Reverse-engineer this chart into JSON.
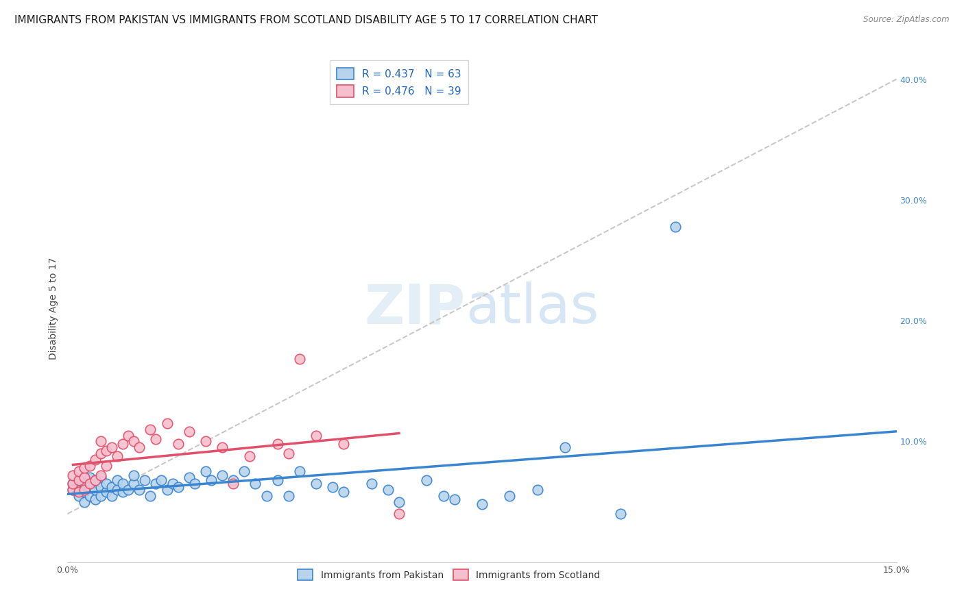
{
  "title": "IMMIGRANTS FROM PAKISTAN VS IMMIGRANTS FROM SCOTLAND DISABILITY AGE 5 TO 17 CORRELATION CHART",
  "source": "Source: ZipAtlas.com",
  "ylabel": "Disability Age 5 to 17",
  "x_min": 0.0,
  "x_max": 0.15,
  "y_min": 0.0,
  "y_max": 0.42,
  "pakistan_R": 0.437,
  "pakistan_N": 63,
  "scotland_R": 0.476,
  "scotland_N": 39,
  "pakistan_color": "#b8d4ed",
  "pakistan_line_color": "#3a85d0",
  "pakistan_edge_color": "#3a85d0",
  "scotland_color": "#f5bfce",
  "scotland_line_color": "#e0506a",
  "scotland_edge_color": "#e0506a",
  "trend_line_color": "#c8c8c8",
  "pakistan_scatter_x": [
    0.001,
    0.001,
    0.002,
    0.002,
    0.002,
    0.003,
    0.003,
    0.003,
    0.004,
    0.004,
    0.004,
    0.005,
    0.005,
    0.005,
    0.006,
    0.006,
    0.006,
    0.007,
    0.007,
    0.008,
    0.008,
    0.009,
    0.009,
    0.01,
    0.01,
    0.011,
    0.012,
    0.012,
    0.013,
    0.014,
    0.015,
    0.016,
    0.017,
    0.018,
    0.019,
    0.02,
    0.022,
    0.023,
    0.025,
    0.026,
    0.028,
    0.03,
    0.032,
    0.034,
    0.036,
    0.038,
    0.04,
    0.042,
    0.045,
    0.048,
    0.05,
    0.055,
    0.058,
    0.06,
    0.065,
    0.068,
    0.07,
    0.075,
    0.08,
    0.085,
    0.09,
    0.1,
    0.11
  ],
  "pakistan_scatter_y": [
    0.06,
    0.065,
    0.055,
    0.06,
    0.068,
    0.05,
    0.058,
    0.065,
    0.055,
    0.062,
    0.07,
    0.052,
    0.06,
    0.068,
    0.055,
    0.062,
    0.07,
    0.058,
    0.065,
    0.055,
    0.062,
    0.06,
    0.068,
    0.058,
    0.065,
    0.06,
    0.065,
    0.072,
    0.06,
    0.068,
    0.055,
    0.065,
    0.068,
    0.06,
    0.065,
    0.062,
    0.07,
    0.065,
    0.075,
    0.068,
    0.072,
    0.068,
    0.075,
    0.065,
    0.055,
    0.068,
    0.055,
    0.075,
    0.065,
    0.062,
    0.058,
    0.065,
    0.06,
    0.05,
    0.068,
    0.055,
    0.052,
    0.048,
    0.055,
    0.06,
    0.095,
    0.04,
    0.278
  ],
  "scotland_scatter_x": [
    0.001,
    0.001,
    0.001,
    0.002,
    0.002,
    0.002,
    0.003,
    0.003,
    0.003,
    0.004,
    0.004,
    0.005,
    0.005,
    0.006,
    0.006,
    0.006,
    0.007,
    0.007,
    0.008,
    0.009,
    0.01,
    0.011,
    0.012,
    0.013,
    0.015,
    0.016,
    0.018,
    0.02,
    0.022,
    0.025,
    0.028,
    0.03,
    0.033,
    0.038,
    0.04,
    0.042,
    0.045,
    0.05,
    0.06
  ],
  "scotland_scatter_y": [
    0.06,
    0.065,
    0.072,
    0.058,
    0.068,
    0.075,
    0.06,
    0.07,
    0.078,
    0.065,
    0.08,
    0.068,
    0.085,
    0.072,
    0.09,
    0.1,
    0.08,
    0.092,
    0.095,
    0.088,
    0.098,
    0.105,
    0.1,
    0.095,
    0.11,
    0.102,
    0.115,
    0.098,
    0.108,
    0.1,
    0.095,
    0.065,
    0.088,
    0.098,
    0.09,
    0.168,
    0.105,
    0.098,
    0.04
  ],
  "watermark_line1": "ZIP",
  "watermark_line2": "atlas",
  "title_fontsize": 11,
  "axis_label_fontsize": 10,
  "tick_fontsize": 9,
  "legend_fontsize": 10
}
